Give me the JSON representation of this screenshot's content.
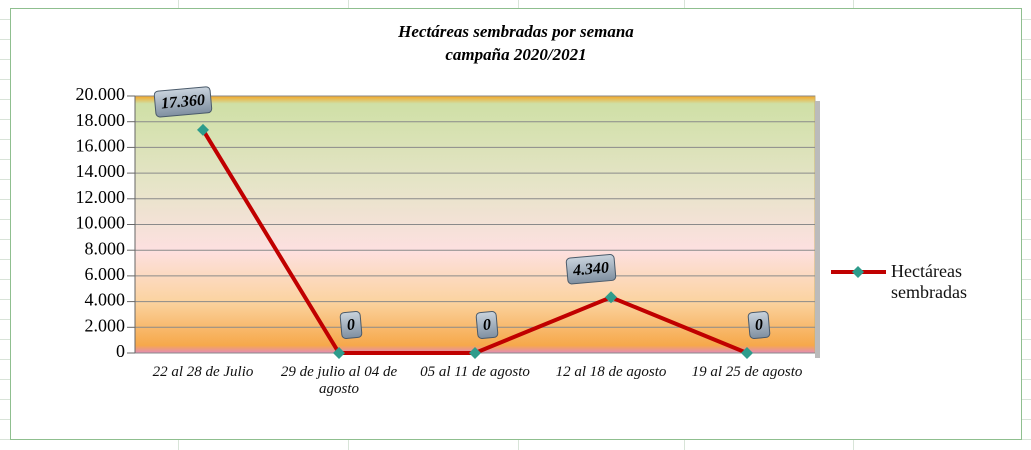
{
  "chart_data": {
    "type": "line",
    "title": "Hectáreas sembradas por semana",
    "subtitle": "campaña 2020/2021",
    "categories": [
      "22 al 28 de Julio",
      "29 de julio al 04 de agosto",
      "05 al 11 de agosto",
      "12 al 18 de agosto",
      "19 al 25 de agosto"
    ],
    "series": [
      {
        "name": "Hectáreas sembradas",
        "color": "#c00000",
        "marker_color": "#2e9c8c",
        "values": [
          17360,
          0,
          0,
          4340,
          0
        ],
        "value_labels": [
          "17.360",
          "0",
          "0",
          "4.340",
          "0"
        ]
      }
    ],
    "ylim": [
      0,
      20000
    ],
    "yticks": [
      0,
      {
        "value": 2000,
        "label": "2.000"
      },
      {
        "value": 4000,
        "label": "4.000"
      },
      {
        "value": 6000,
        "label": "6.000"
      },
      {
        "value": 8000,
        "label": "8.000"
      },
      {
        "value": 10000,
        "label": "10.000"
      },
      {
        "value": 12000,
        "label": "12.000"
      },
      {
        "value": 14000,
        "label": "14.000"
      },
      {
        "value": 16000,
        "label": "16.000"
      },
      {
        "value": 18000,
        "label": "18.000"
      },
      {
        "value": 20000,
        "label": "20.000"
      }
    ],
    "grid": true,
    "legend": "right"
  }
}
